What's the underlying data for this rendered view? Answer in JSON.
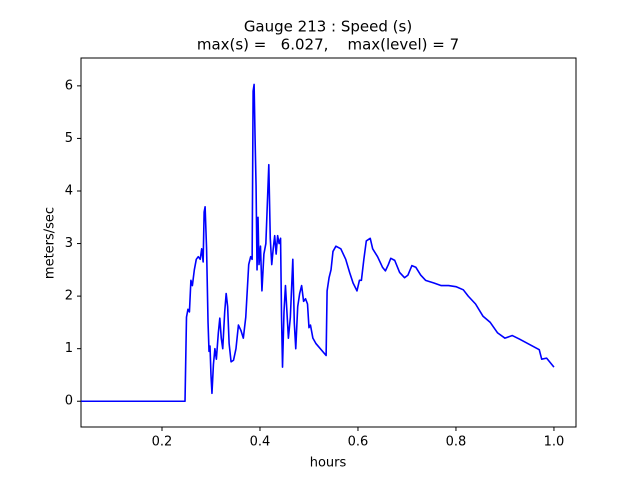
{
  "chart_data": {
    "type": "line",
    "title": "Gauge 213 : Speed (s)",
    "subtitle": "max(s) =   6.027,    max(level) = 7",
    "x_label": "hours",
    "y_label": "meters/sec",
    "xlim": [
      0.0347,
      1.045
    ],
    "ylim": [
      -0.49,
      6.53
    ],
    "xticks": [
      0.2,
      0.4,
      0.6,
      0.8,
      {
        "value": 1,
        "label": "1.0"
      }
    ],
    "yticks": [
      0,
      1,
      2,
      3,
      4,
      5,
      6
    ],
    "grid": false,
    "series": [
      {
        "color": "#0000ff",
        "x": [
          0.035,
          0.247,
          0.25,
          0.253,
          0.256,
          0.259,
          0.262,
          0.266,
          0.27,
          0.274,
          0.278,
          0.281,
          0.284,
          0.286,
          0.288,
          0.291,
          0.294,
          0.296,
          0.298,
          0.3,
          0.302,
          0.305,
          0.308,
          0.311,
          0.315,
          0.318,
          0.321,
          0.324,
          0.328,
          0.331,
          0.334,
          0.337,
          0.341,
          0.346,
          0.351,
          0.356,
          0.361,
          0.366,
          0.371,
          0.377,
          0.381,
          0.384,
          0.386,
          0.388,
          0.39,
          0.392,
          0.394,
          0.396,
          0.398,
          0.401,
          0.404,
          0.408,
          0.412,
          0.418,
          0.421,
          0.424,
          0.427,
          0.43,
          0.433,
          0.436,
          0.439,
          0.442,
          0.444,
          0.446,
          0.449,
          0.452,
          0.455,
          0.458,
          0.462,
          0.467,
          0.47,
          0.473,
          0.477,
          0.481,
          0.485,
          0.489,
          0.493,
          0.497,
          0.5,
          0.503,
          0.508,
          0.514,
          0.535,
          0.537,
          0.541,
          0.545,
          0.549,
          0.555,
          0.565,
          0.575,
          0.583,
          0.59,
          0.598,
          0.603,
          0.607,
          0.612,
          0.617,
          0.625,
          0.63,
          0.64,
          0.65,
          0.656,
          0.662,
          0.667,
          0.675,
          0.685,
          0.695,
          0.702,
          0.71,
          0.718,
          0.728,
          0.738,
          0.755,
          0.77,
          0.785,
          0.8,
          0.815,
          0.825,
          0.84,
          0.855,
          0.87,
          0.885,
          0.9,
          0.915,
          0.93,
          0.95,
          0.97,
          0.975,
          0.985,
          1.0
        ],
        "values": [
          0,
          0,
          1.6,
          1.75,
          1.7,
          2.3,
          2.2,
          2.5,
          2.7,
          2.75,
          2.7,
          2.9,
          2.65,
          3.6,
          3.7,
          2.9,
          1.5,
          0.95,
          1.05,
          0.5,
          0.15,
          0.7,
          1.0,
          0.8,
          1.3,
          1.58,
          1.2,
          1.0,
          1.7,
          2.05,
          1.8,
          1.1,
          0.75,
          0.78,
          1.0,
          1.45,
          1.35,
          1.2,
          1.6,
          2.6,
          2.75,
          2.7,
          5.9,
          6.027,
          5.0,
          4.1,
          2.5,
          3.5,
          2.6,
          2.95,
          2.1,
          2.8,
          3.0,
          4.5,
          3.1,
          2.6,
          2.9,
          3.15,
          2.8,
          3.15,
          3.0,
          3.1,
          1.6,
          0.65,
          1.7,
          2.2,
          1.7,
          1.2,
          1.6,
          2.7,
          1.5,
          1.0,
          1.8,
          2.05,
          2.2,
          1.9,
          1.95,
          1.85,
          1.4,
          1.45,
          1.2,
          1.1,
          0.87,
          2.1,
          2.35,
          2.5,
          2.85,
          2.95,
          2.9,
          2.7,
          2.45,
          2.25,
          2.1,
          2.3,
          2.3,
          2.7,
          3.05,
          3.1,
          2.9,
          2.75,
          2.55,
          2.48,
          2.6,
          2.72,
          2.68,
          2.45,
          2.35,
          2.4,
          2.58,
          2.55,
          2.4,
          2.3,
          2.25,
          2.2,
          2.2,
          2.18,
          2.12,
          2.0,
          1.85,
          1.62,
          1.5,
          1.3,
          1.2,
          1.25,
          1.18,
          1.08,
          0.98,
          0.8,
          0.82,
          0.65
        ]
      }
    ]
  }
}
